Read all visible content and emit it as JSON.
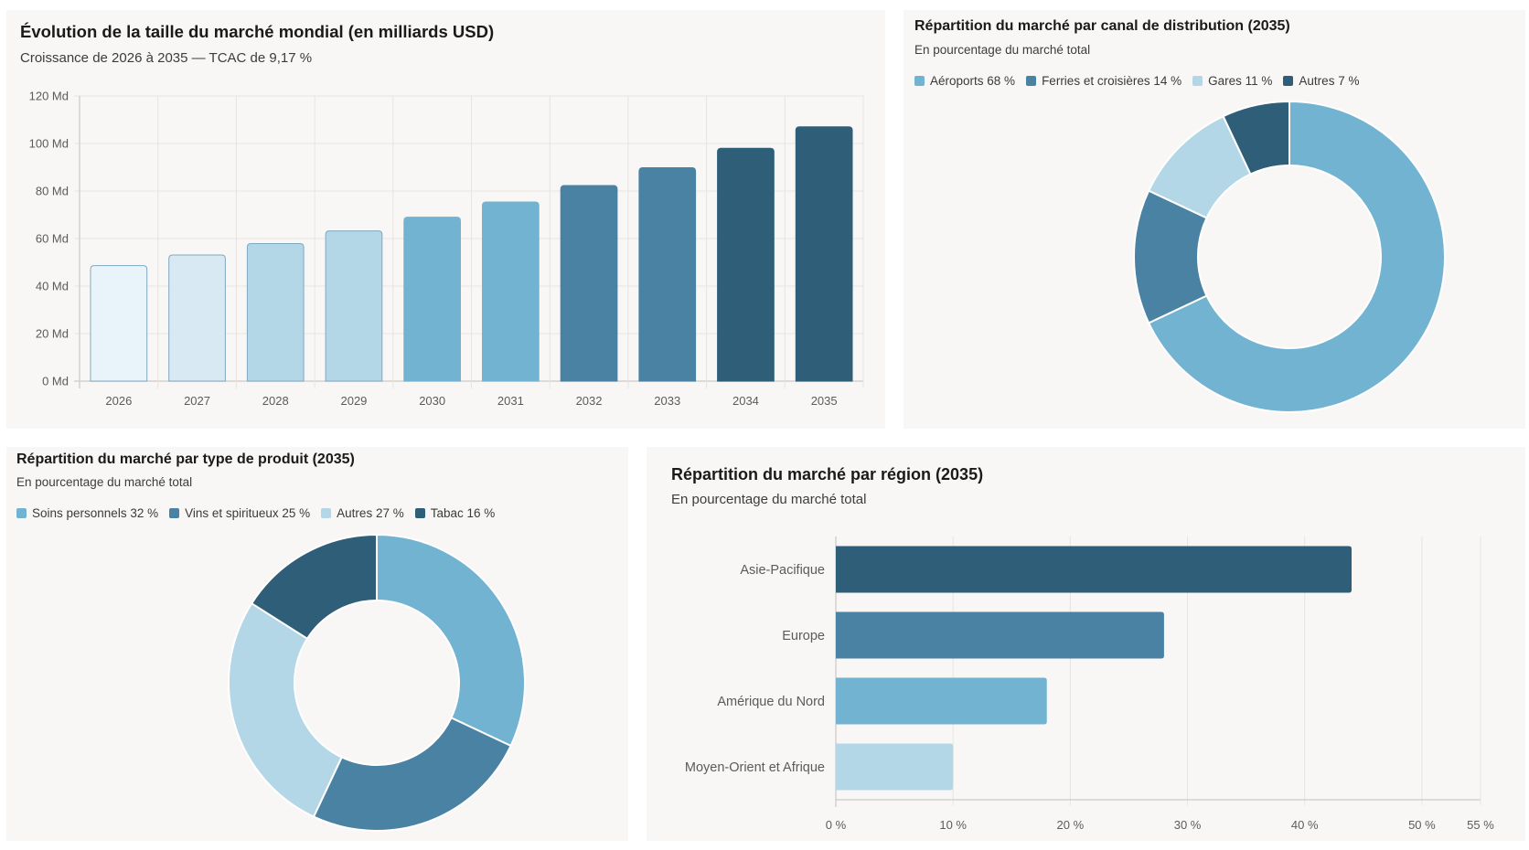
{
  "colors": {
    "c1": "#e9f3fa",
    "c2": "#d8e9f3",
    "c3": "#b3d7e7",
    "c4": "#71b3d0",
    "c5": "#4a82a3",
    "c6": "#2f5e78",
    "bar_outline": "#7fa9c2",
    "grid": "#e6e3e1",
    "axis": "#d4d1cf"
  },
  "chart_data": [
    {
      "id": "market-size",
      "type": "bar",
      "title": "Évolution de la taille du marché mondial (en milliards USD)",
      "subtitle": "Croissance de 2026 à 2035 — TCAC de 9,17 %",
      "categories": [
        "2026",
        "2027",
        "2028",
        "2029",
        "2030",
        "2031",
        "2032",
        "2033",
        "2034",
        "2035"
      ],
      "values": [
        48.6,
        53.1,
        57.9,
        63.2,
        69.0,
        75.4,
        82.3,
        89.8,
        98.0,
        107.0
      ],
      "bar_colors": [
        "#e9f3fa",
        "#d8e9f3",
        "#b3d7e7",
        "#b3d7e7",
        "#71b3d0",
        "#71b3d0",
        "#4a82a3",
        "#4a82a3",
        "#2f5e78",
        "#2f5e78"
      ],
      "ylim": [
        0,
        120
      ],
      "yticks": [
        0,
        20,
        40,
        60,
        80,
        100,
        120
      ],
      "ytick_labels": [
        "0 Md",
        "20 Md",
        "40 Md",
        "60 Md",
        "80 Md",
        "100 Md",
        "120 Md"
      ],
      "xlabel": "",
      "ylabel": "",
      "grid": true
    },
    {
      "id": "channel",
      "type": "pie",
      "donut": true,
      "title": "Répartition du marché par canal de distribution (2035)",
      "subtitle": "En pourcentage du marché total",
      "labels": [
        "Aéroports",
        "Ferries et croisières",
        "Gares",
        "Autres"
      ],
      "values": [
        68,
        14,
        11,
        7
      ],
      "legend_labels": [
        "Aéroports 68 %",
        "Ferries et croisières 14 %",
        "Gares 11 %",
        "Autres 7 %"
      ],
      "colors": [
        "#71b3d0",
        "#4a82a3",
        "#b3d7e7",
        "#2f5e78"
      ],
      "legend": "top-left"
    },
    {
      "id": "product",
      "type": "pie",
      "donut": true,
      "title": "Répartition du marché par type de produit (2035)",
      "subtitle": "En pourcentage du marché total",
      "labels": [
        "Soins personnels",
        "Vins et spiritueux",
        "Autres",
        "Tabac"
      ],
      "values": [
        32,
        25,
        27,
        16
      ],
      "legend_labels": [
        "Soins personnels 32 %",
        "Vins et spiritueux 25 %",
        "Autres 27 %",
        "Tabac 16 %"
      ],
      "colors": [
        "#71b3d0",
        "#4a82a3",
        "#b3d7e7",
        "#2f5e78"
      ],
      "legend": "top-left"
    },
    {
      "id": "region",
      "type": "bar",
      "orientation": "horizontal",
      "title": "Répartition du marché par région (2035)",
      "subtitle": "En pourcentage du marché total",
      "categories": [
        "Asie-Pacifique",
        "Europe",
        "Amérique du Nord",
        "Moyen-Orient et Afrique"
      ],
      "values": [
        44,
        28,
        18,
        10
      ],
      "bar_colors": [
        "#2f5e78",
        "#4a82a3",
        "#71b3d0",
        "#b3d7e7"
      ],
      "xlim": [
        0,
        55
      ],
      "xticks": [
        0,
        10,
        20,
        30,
        40,
        50,
        55
      ],
      "xtick_labels": [
        "0 %",
        "10 %",
        "20 %",
        "30 %",
        "40 %",
        "50 %",
        "55 %"
      ],
      "grid": true
    }
  ]
}
